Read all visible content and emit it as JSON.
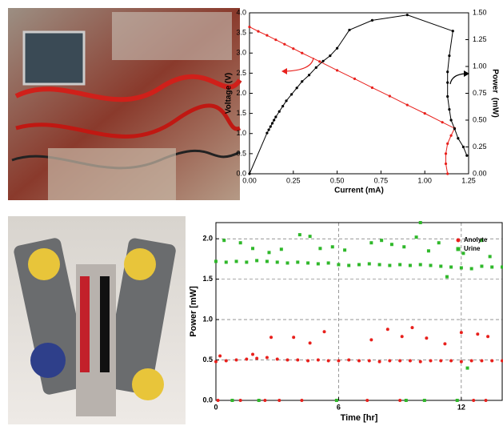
{
  "chart_data": [
    {
      "type": "line",
      "x_label": "Current (mA)",
      "y_label": "Voltage (V)",
      "y2_label": "Power  (mW)",
      "xlim": [
        0,
        1.25
      ],
      "ylim": [
        0,
        4
      ],
      "y2lim": [
        0,
        1.5
      ],
      "xticks": [
        {
          "value": 0,
          "label": "0.00"
        },
        {
          "value": 0.25,
          "label": "0.25"
        },
        {
          "value": 0.5,
          "label": "0.50"
        },
        {
          "value": 0.75,
          "label": "0.75"
        },
        {
          "value": 1,
          "label": "1.00"
        },
        {
          "value": 1.25,
          "label": "1.25"
        }
      ],
      "yticks": [
        {
          "value": 0,
          "label": "0.0"
        },
        {
          "value": 0.5,
          "label": "0.5"
        },
        {
          "value": 1,
          "label": "1.0"
        },
        {
          "value": 1.5,
          "label": "1.5"
        },
        {
          "value": 2,
          "label": "2.0"
        },
        {
          "value": 2.5,
          "label": "2.5"
        },
        {
          "value": 3,
          "label": "3.0"
        },
        {
          "value": 3.5,
          "label": "3.5"
        },
        {
          "value": 4,
          "label": "4.0"
        }
      ],
      "y2ticks": [
        {
          "value": 0,
          "label": "0.00"
        },
        {
          "value": 0.25,
          "label": "0.25"
        },
        {
          "value": 0.5,
          "label": "0.50"
        },
        {
          "value": 0.75,
          "label": "0.75"
        },
        {
          "value": 1,
          "label": "1.00"
        },
        {
          "value": 1.25,
          "label": "1.25"
        },
        {
          "value": 1.5,
          "label": "1.50"
        }
      ],
      "grid": false,
      "series": [
        {
          "color": "#e8201c",
          "x": [
            0,
            0.05,
            0.1,
            0.15,
            0.2,
            0.25,
            0.3,
            0.4,
            0.5,
            0.6,
            0.7,
            0.8,
            0.9,
            1.0,
            1.1,
            1.17,
            1.15,
            1.13,
            1.12,
            1.12,
            1.13
          ],
          "values": [
            3.65,
            3.54,
            3.44,
            3.33,
            3.22,
            3.11,
            3.0,
            2.79,
            2.57,
            2.36,
            2.14,
            1.93,
            1.71,
            1.5,
            1.28,
            1.13,
            0.95,
            0.75,
            0.5,
            0.25,
            0.0
          ]
        },
        {
          "color": "#000000",
          "axis": "y2",
          "x": [
            0,
            0.1,
            0.11,
            0.12,
            0.13,
            0.14,
            0.15,
            0.17,
            0.19,
            0.21,
            0.24,
            0.27,
            0.3,
            0.34,
            0.38,
            0.42,
            0.46,
            0.5,
            0.57,
            0.7,
            0.9,
            1.16,
            1.14,
            1.13,
            1.13,
            1.13,
            1.14,
            1.15,
            1.17,
            1.19,
            1.22,
            1.24
          ],
          "values": [
            0,
            0.38,
            0.41,
            0.44,
            0.47,
            0.5,
            0.53,
            0.58,
            0.63,
            0.68,
            0.74,
            0.8,
            0.86,
            0.92,
            0.99,
            1.05,
            1.1,
            1.17,
            1.34,
            1.43,
            1.48,
            1.33,
            1.1,
            0.95,
            0.85,
            0.72,
            0.6,
            0.5,
            0.42,
            0.33,
            0.25,
            0.17
          ]
        }
      ]
    },
    {
      "type": "scatter",
      "x_label": "Time [hr]",
      "y_label": "Power [mW]",
      "xlim": [
        0,
        14
      ],
      "ylim": [
        0,
        2.2
      ],
      "xticks": [
        0,
        6,
        12
      ],
      "yticks": [
        {
          "value": 0,
          "label": "0.0"
        },
        {
          "value": 0.5,
          "label": "0.5"
        },
        {
          "value": 1,
          "label": "1.0"
        },
        {
          "value": 1.5,
          "label": "1.5"
        },
        {
          "value": 2,
          "label": "2.0"
        }
      ],
      "grid": true,
      "legend": "upper right",
      "series": [
        {
          "name": "Anolyte",
          "color": "#e8201c",
          "marker": "circle",
          "x": [
            0,
            0.5,
            1,
            1.5,
            2,
            2.5,
            3,
            3.5,
            4,
            4.5,
            5,
            5.5,
            6,
            6.5,
            7,
            7.5,
            8,
            8.5,
            9,
            9.5,
            10,
            10.5,
            11,
            11.5,
            12,
            12.5,
            13,
            13.5,
            14,
            0.2,
            1.8,
            2.7,
            3.8,
            4.6,
            5.3,
            7.6,
            8.4,
            9.1,
            9.6,
            10.3,
            11.2,
            12,
            12.8,
            13.3,
            0.1,
            1.2,
            2.4,
            3.1,
            4.2,
            7.4,
            9,
            12.6,
            13.2
          ],
          "values": [
            0.48,
            0.49,
            0.5,
            0.51,
            0.52,
            0.53,
            0.51,
            0.5,
            0.5,
            0.49,
            0.5,
            0.49,
            0.49,
            0.5,
            0.49,
            0.49,
            0.48,
            0.49,
            0.49,
            0.49,
            0.48,
            0.49,
            0.49,
            0.49,
            0.48,
            0.49,
            0.49,
            0.49,
            0.49,
            0.55,
            0.57,
            0.78,
            0.78,
            0.71,
            0.85,
            0.75,
            0.88,
            0.79,
            0.9,
            0.77,
            0.7,
            0.84,
            0.82,
            0.79,
            0,
            0,
            0,
            0,
            0,
            0,
            0,
            0,
            0
          ]
        },
        {
          "name": "Urine",
          "color": "#2fb82a",
          "marker": "square",
          "x": [
            0,
            0.5,
            1,
            1.5,
            2,
            2.5,
            3,
            3.5,
            4,
            4.5,
            5,
            5.5,
            6,
            6.5,
            7,
            7.5,
            8,
            8.5,
            9,
            9.5,
            10,
            10.5,
            11,
            11.5,
            12,
            12.5,
            13,
            13.5,
            14,
            0.4,
            1.2,
            1.8,
            2.6,
            3.2,
            4.1,
            4.6,
            5.1,
            5.7,
            6.3,
            7.6,
            8.1,
            8.6,
            9.2,
            9.8,
            10,
            10.4,
            10.9,
            11.3,
            12.1,
            12.3,
            13,
            13.4,
            0.8,
            2.1,
            5.9,
            9.3,
            10.2,
            11.8
          ],
          "values": [
            1.72,
            1.71,
            1.72,
            1.71,
            1.73,
            1.72,
            1.71,
            1.7,
            1.71,
            1.7,
            1.69,
            1.7,
            1.68,
            1.67,
            1.68,
            1.69,
            1.68,
            1.67,
            1.68,
            1.67,
            1.68,
            1.67,
            1.66,
            1.65,
            1.64,
            1.63,
            1.66,
            1.65,
            1.65,
            1.98,
            1.95,
            1.88,
            1.83,
            1.87,
            2.05,
            2.03,
            1.88,
            1.9,
            1.86,
            1.95,
            1.98,
            1.93,
            1.9,
            2.02,
            2.2,
            1.85,
            1.95,
            1.53,
            1.82,
            0.4,
            1.98,
            1.78,
            0,
            0,
            0,
            0,
            0,
            0
          ]
        }
      ]
    }
  ]
}
